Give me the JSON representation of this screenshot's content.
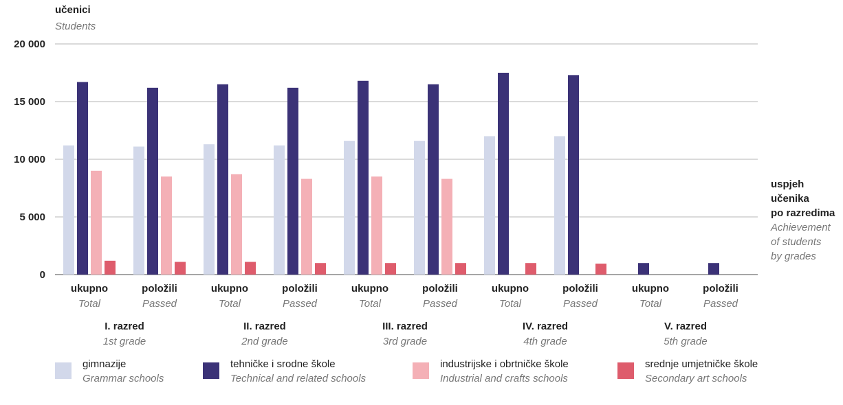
{
  "chart_data": {
    "type": "bar",
    "y_title": "učenici",
    "y_title_en": "Students",
    "side_title": [
      "uspjeh",
      "učenika",
      "po razredima"
    ],
    "side_title_en": [
      "Achievement",
      "of students",
      "by grades"
    ],
    "ylim": [
      0,
      20000
    ],
    "yticks": [
      0,
      5000,
      10000,
      15000,
      20000
    ],
    "ytick_labels": [
      "0",
      "5 000",
      "10 000",
      "15 000",
      "20 000"
    ],
    "grid": true,
    "legend_position": "bottom",
    "categories": [
      {
        "label": "ukupno",
        "label_en": "Total"
      },
      {
        "label": "položili",
        "label_en": "Passed"
      },
      {
        "label": "ukupno",
        "label_en": "Total"
      },
      {
        "label": "položili",
        "label_en": "Passed"
      },
      {
        "label": "ukupno",
        "label_en": "Total"
      },
      {
        "label": "položili",
        "label_en": "Passed"
      },
      {
        "label": "ukupno",
        "label_en": "Total"
      },
      {
        "label": "položili",
        "label_en": "Passed"
      },
      {
        "label": "ukupno",
        "label_en": "Total"
      },
      {
        "label": "položili",
        "label_en": "Passed"
      }
    ],
    "groups": [
      {
        "label": "I. razred",
        "label_en": "1st grade"
      },
      {
        "label": "II. razred",
        "label_en": "2nd grade"
      },
      {
        "label": "III. razred",
        "label_en": "3rd grade"
      },
      {
        "label": "IV. razred",
        "label_en": "4th grade"
      },
      {
        "label": "V. razred",
        "label_en": "5th grade"
      }
    ],
    "series": [
      {
        "name": "gimnazije",
        "name_en": "Grammar schools",
        "color": "#d2d8ea",
        "values": [
          11200,
          11100,
          11300,
          11200,
          11600,
          11600,
          12000,
          12000,
          0,
          0
        ]
      },
      {
        "name": "tehničke i srodne škole",
        "name_en": "Technical and related schools",
        "color": "#3b3277",
        "values": [
          16700,
          16200,
          16500,
          16200,
          16800,
          16500,
          17500,
          17300,
          1000,
          1000
        ]
      },
      {
        "name": "industrijske i obrtničke škole",
        "name_en": "Industrial and crafts schools",
        "color": "#f4b0b6",
        "values": [
          9000,
          8500,
          8700,
          8300,
          8500,
          8300,
          0,
          0,
          0,
          0
        ]
      },
      {
        "name": "srednje umjetničke škole",
        "name_en": "Secondary art schools",
        "color": "#de5c6c",
        "values": [
          1200,
          1100,
          1100,
          1000,
          1000,
          1000,
          1000,
          950,
          0,
          0
        ]
      }
    ]
  }
}
